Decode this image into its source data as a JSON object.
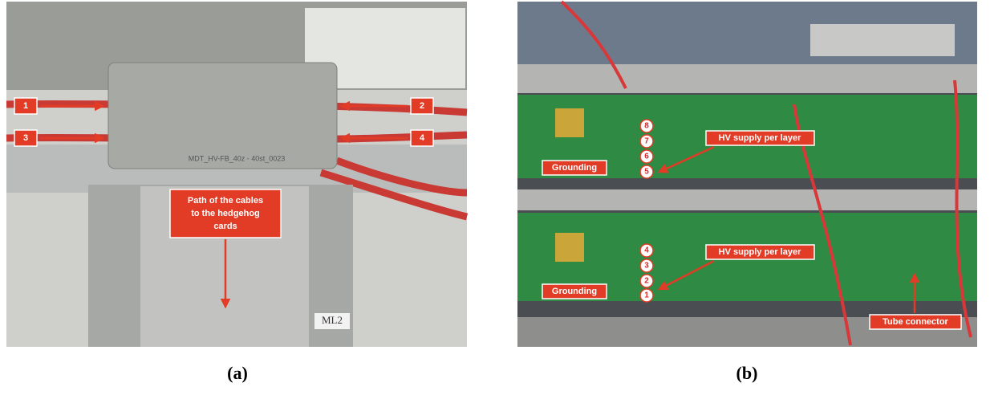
{
  "panels": [
    {
      "caption": "(a)",
      "labels": [
        "1",
        "2",
        "3",
        "4"
      ],
      "annotation": [
        "Path of the cables",
        "to the hedgehog",
        "cards"
      ],
      "sticker": "ML2"
    },
    {
      "caption": "(b)",
      "layer_numbers": [
        "8",
        "7",
        "6",
        "5",
        "4",
        "3",
        "2",
        "1"
      ],
      "hv_labels": [
        "HV supply per layer",
        "HV supply per layer"
      ],
      "grounding_labels": [
        "Grounding",
        "Grounding"
      ],
      "connector_label": "Tube connector"
    }
  ]
}
